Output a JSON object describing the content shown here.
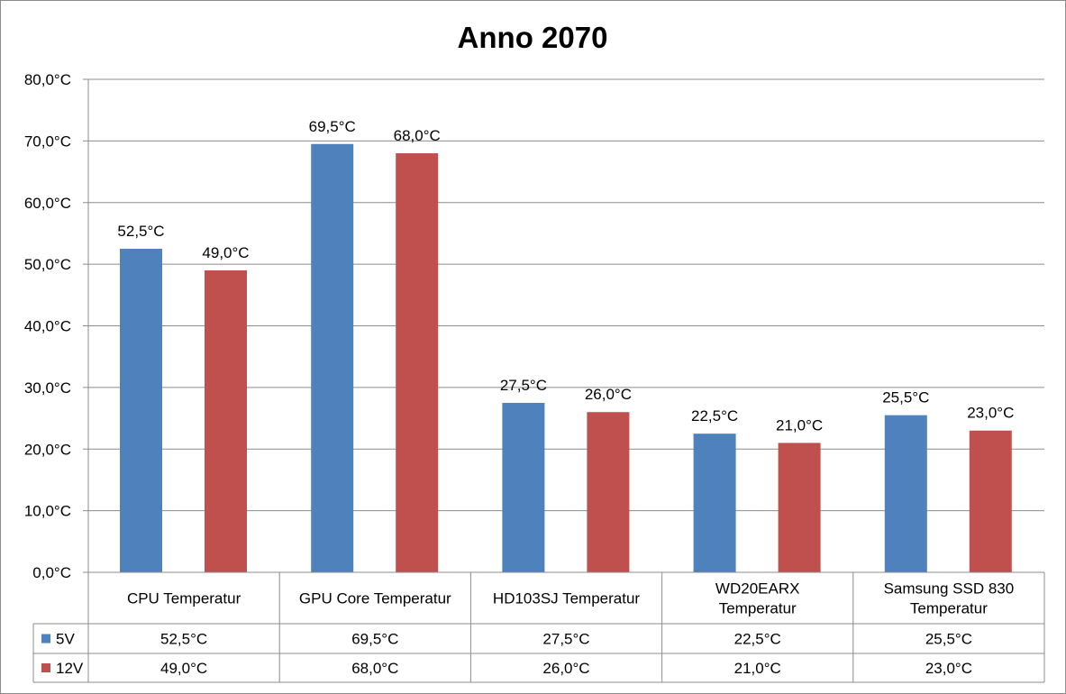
{
  "chart_data": {
    "type": "bar",
    "title": "Anno 2070",
    "categories": [
      [
        "CPU Temperatur"
      ],
      [
        "GPU Core Temperatur"
      ],
      [
        "HD103SJ Temperatur"
      ],
      [
        "WD20EARX",
        "Temperatur"
      ],
      [
        "Samsung SSD 830",
        "Temperatur"
      ]
    ],
    "series": [
      {
        "name": "5V",
        "color": "#4f81bd",
        "values": [
          52.5,
          69.5,
          27.5,
          22.5,
          25.5
        ],
        "labels": [
          "52,5°C",
          "69,5°C",
          "27,5°C",
          "22,5°C",
          "25,5°C"
        ]
      },
      {
        "name": "12V",
        "color": "#c0504d",
        "values": [
          49.0,
          68.0,
          26.0,
          21.0,
          23.0
        ],
        "labels": [
          "49,0°C",
          "68,0°C",
          "26,0°C",
          "21,0°C",
          "23,0°C"
        ]
      }
    ],
    "ylim": [
      0,
      80
    ],
    "yticks": [
      0,
      10,
      20,
      30,
      40,
      50,
      60,
      70,
      80
    ],
    "ytick_labels": [
      "0,0°C",
      "10,0°C",
      "20,0°C",
      "30,0°C",
      "40,0°C",
      "50,0°C",
      "60,0°C",
      "70,0°C",
      "80,0°C"
    ],
    "grid": true,
    "legend": "data-table",
    "data_table": true
  }
}
